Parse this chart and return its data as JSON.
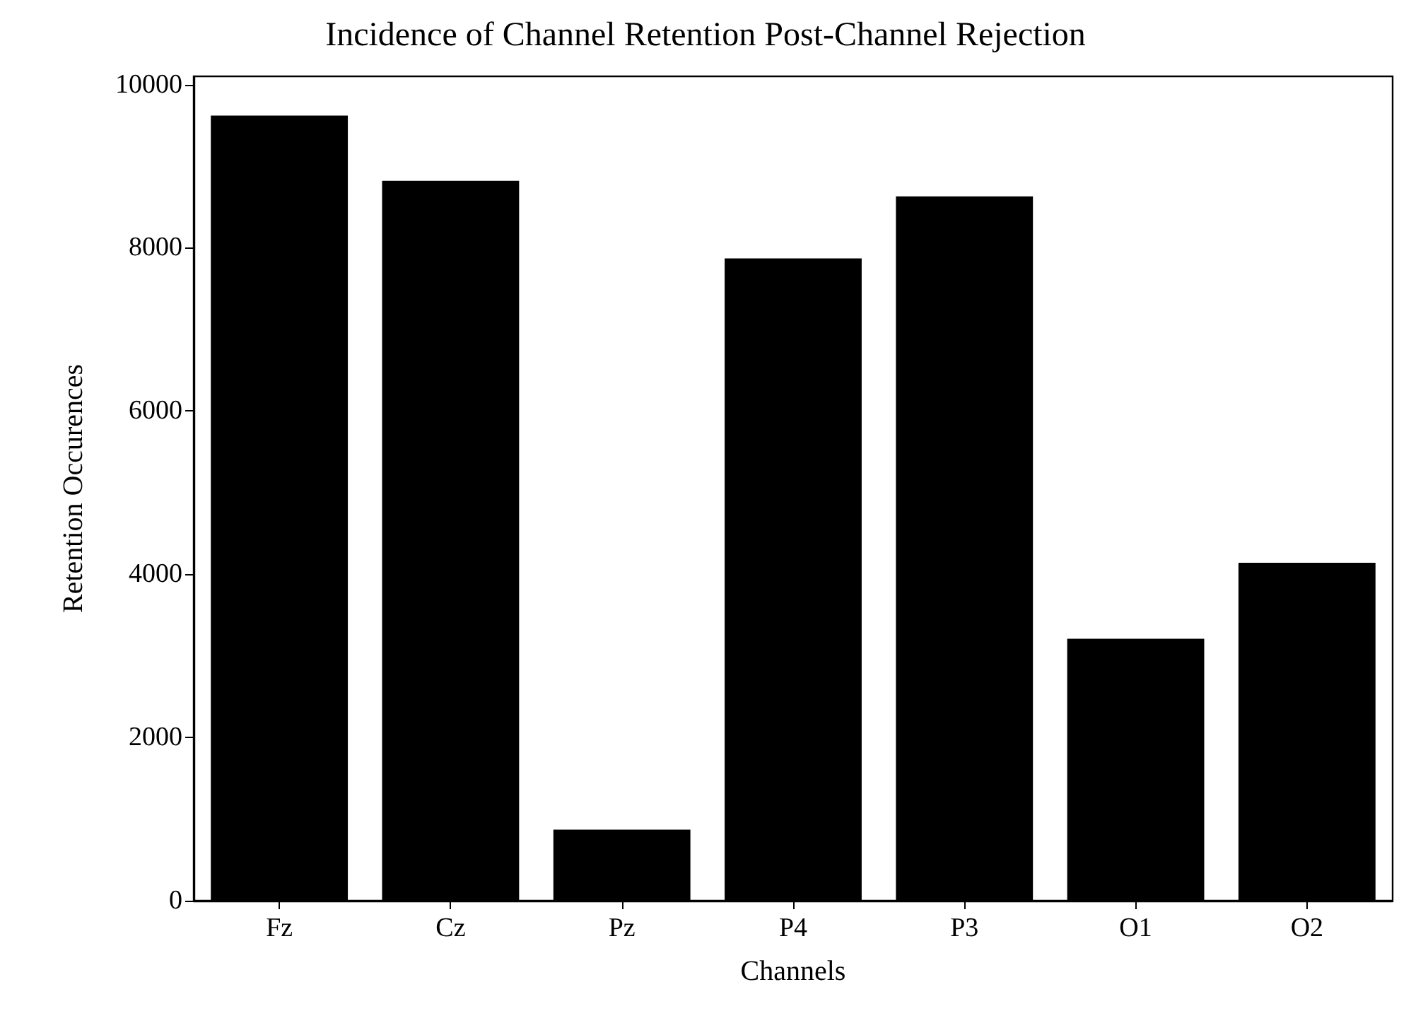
{
  "chart_data": {
    "type": "bar",
    "title": "Incidence of Channel Retention Post-Channel Rejection",
    "xlabel": "Channels",
    "ylabel": "Retention Occurences",
    "categories": [
      "Fz",
      "Cz",
      "Pz",
      "P4",
      "P3",
      "O1",
      "O2"
    ],
    "values": [
      9620,
      8820,
      870,
      7870,
      8630,
      3210,
      4140
    ],
    "color": "#000000",
    "ylim": [
      0,
      10100
    ],
    "yticks": [
      0,
      2000,
      4000,
      6000,
      8000,
      10000
    ],
    "grid": false
  }
}
